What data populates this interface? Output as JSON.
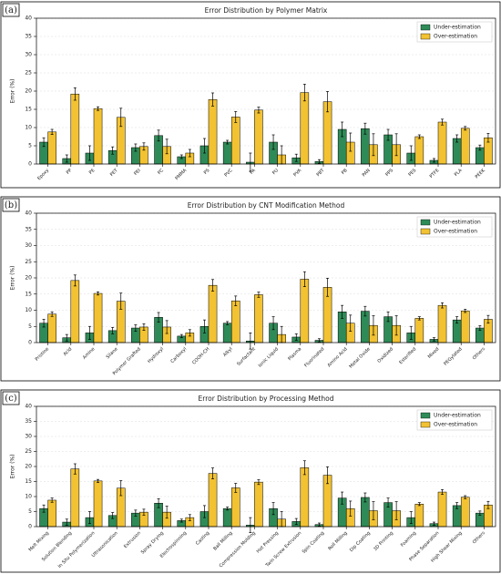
{
  "chart_data": [
    {
      "type": "bar",
      "panel_label": "(a)",
      "title": "Error Distribution by Polymer Matrix",
      "ylabel": "Error (%)",
      "categories": [
        "Epoxy",
        "PP",
        "PE",
        "PET",
        "PEI",
        "PC",
        "PMMA",
        "PS",
        "PVC",
        "PA",
        "PU",
        "PVA",
        "PBT",
        "PB",
        "PAN",
        "PPS",
        "PES",
        "PTFE",
        "PLA",
        "PEEK"
      ],
      "series": [
        {
          "name": "Under-estimation",
          "color": "#2e8b57",
          "values": [
            6,
            1.5,
            3,
            3.7,
            4.5,
            7.8,
            2,
            5,
            6,
            0.5,
            6,
            1.7,
            0.7,
            9.5,
            9.7,
            8,
            3,
            1,
            7,
            4.5
          ],
          "errors": [
            1.2,
            1,
            2,
            1,
            1,
            1.5,
            0.5,
            2,
            0.5,
            2.5,
            2,
            1,
            0.5,
            2,
            1.5,
            1.5,
            2,
            0.5,
            1,
            0.7
          ]
        },
        {
          "name": "Over-estimation",
          "color": "#f2c232",
          "values": [
            8.8,
            19.2,
            15.2,
            12.8,
            4.8,
            4.8,
            3,
            17.7,
            12.9,
            14.8,
            2.5,
            19.6,
            17.1,
            6,
            5.3,
            5.3,
            7.5,
            11.5,
            9.8,
            7.2
          ],
          "errors": [
            0.7,
            1.7,
            0.5,
            2.5,
            1,
            2,
            1,
            1.8,
            1.5,
            0.8,
            2.5,
            2.3,
            2.8,
            2.5,
            3,
            3,
            0.5,
            0.8,
            0.5,
            1.2
          ]
        }
      ],
      "ylim": [
        0,
        40
      ],
      "yticks": [
        0,
        5,
        10,
        15,
        20,
        25,
        30,
        35,
        40
      ],
      "grid": true,
      "legend": "upper right"
    },
    {
      "type": "bar",
      "panel_label": "(b)",
      "title": "Error Distribution by CNT Modification Method",
      "ylabel": "Error (%)",
      "categories": [
        "Pristine",
        "Acid",
        "Amine",
        "Silane",
        "Polymer Grafted",
        "Hydroxyl",
        "Carboxyl",
        "COOH-CH",
        "Alkyl",
        "Surfactant",
        "Ionic Liquid",
        "Plasma",
        "Fluorinated",
        "Amino Acid",
        "Metal Oxide",
        "Oxidized",
        "Esterified",
        "Mixed",
        "PEGylated",
        "Others"
      ],
      "series": [
        {
          "name": "Under-estimation",
          "color": "#2e8b57",
          "values": [
            6,
            1.5,
            3,
            3.7,
            4.5,
            7.8,
            2,
            5,
            6,
            0.5,
            6,
            1.7,
            0.7,
            9.5,
            9.7,
            8,
            3,
            1,
            7,
            4.5
          ],
          "errors": [
            1.2,
            1,
            2,
            1,
            1,
            1.5,
            0.5,
            2,
            0.5,
            2.5,
            2,
            1,
            0.5,
            2,
            1.5,
            1.5,
            2,
            0.5,
            1,
            0.7
          ]
        },
        {
          "name": "Over-estimation",
          "color": "#f2c232",
          "values": [
            8.8,
            19.2,
            15.2,
            12.8,
            4.8,
            4.8,
            3,
            17.7,
            12.9,
            14.8,
            2.5,
            19.6,
            17.1,
            6,
            5.3,
            5.3,
            7.5,
            11.5,
            9.8,
            7.2
          ],
          "errors": [
            0.7,
            1.7,
            0.5,
            2.5,
            1,
            2,
            1,
            1.8,
            1.5,
            0.8,
            2.5,
            2.3,
            2.8,
            2.5,
            3,
            3,
            0.5,
            0.8,
            0.5,
            1.2
          ]
        }
      ],
      "ylim": [
        0,
        40
      ],
      "yticks": [
        0,
        5,
        10,
        15,
        20,
        25,
        30,
        35,
        40
      ],
      "grid": true,
      "legend": "upper right"
    },
    {
      "type": "bar",
      "panel_label": "(c)",
      "title": "Error Distribution by Processing Method",
      "ylabel": "Error (%)",
      "categories": [
        "Melt Mixing",
        "Solution Blending",
        "In Situ Polymerization",
        "Ultrasonication",
        "Extrusion",
        "Spray Drying",
        "Electrospinning",
        "Casting",
        "Ball Milling",
        "Compression Molding",
        "Hot Pressing",
        "Twin Screw Extrusion",
        "Spin Coating",
        "Roll Milling",
        "Dip Coating",
        "3D Printing",
        "Foaming",
        "Phase Separation",
        "High Shear Mixing",
        "Others"
      ],
      "series": [
        {
          "name": "Under-estimation",
          "color": "#2e8b57",
          "values": [
            6,
            1.5,
            3,
            3.7,
            4.5,
            7.8,
            2,
            5,
            6,
            0.5,
            6,
            1.7,
            0.7,
            9.5,
            9.7,
            8,
            3,
            1,
            7,
            4.5
          ],
          "errors": [
            1.2,
            1,
            2,
            1,
            1,
            1.5,
            0.5,
            2,
            0.5,
            2.5,
            2,
            1,
            0.5,
            2,
            1.5,
            1.5,
            2,
            0.5,
            1,
            0.7
          ]
        },
        {
          "name": "Over-estimation",
          "color": "#f2c232",
          "values": [
            8.8,
            19.2,
            15.2,
            12.8,
            4.8,
            4.8,
            3,
            17.7,
            12.9,
            14.8,
            2.5,
            19.6,
            17.1,
            6,
            5.3,
            5.3,
            7.5,
            11.5,
            9.8,
            7.2
          ],
          "errors": [
            0.7,
            1.7,
            0.5,
            2.5,
            1,
            2,
            1,
            1.8,
            1.5,
            0.8,
            2.5,
            2.3,
            2.8,
            2.5,
            3,
            3,
            0.5,
            0.8,
            0.5,
            1.2
          ]
        }
      ],
      "ylim": [
        0,
        40
      ],
      "yticks": [
        0,
        5,
        10,
        15,
        20,
        25,
        30,
        35,
        40
      ],
      "grid": true,
      "legend": "upper right"
    }
  ]
}
